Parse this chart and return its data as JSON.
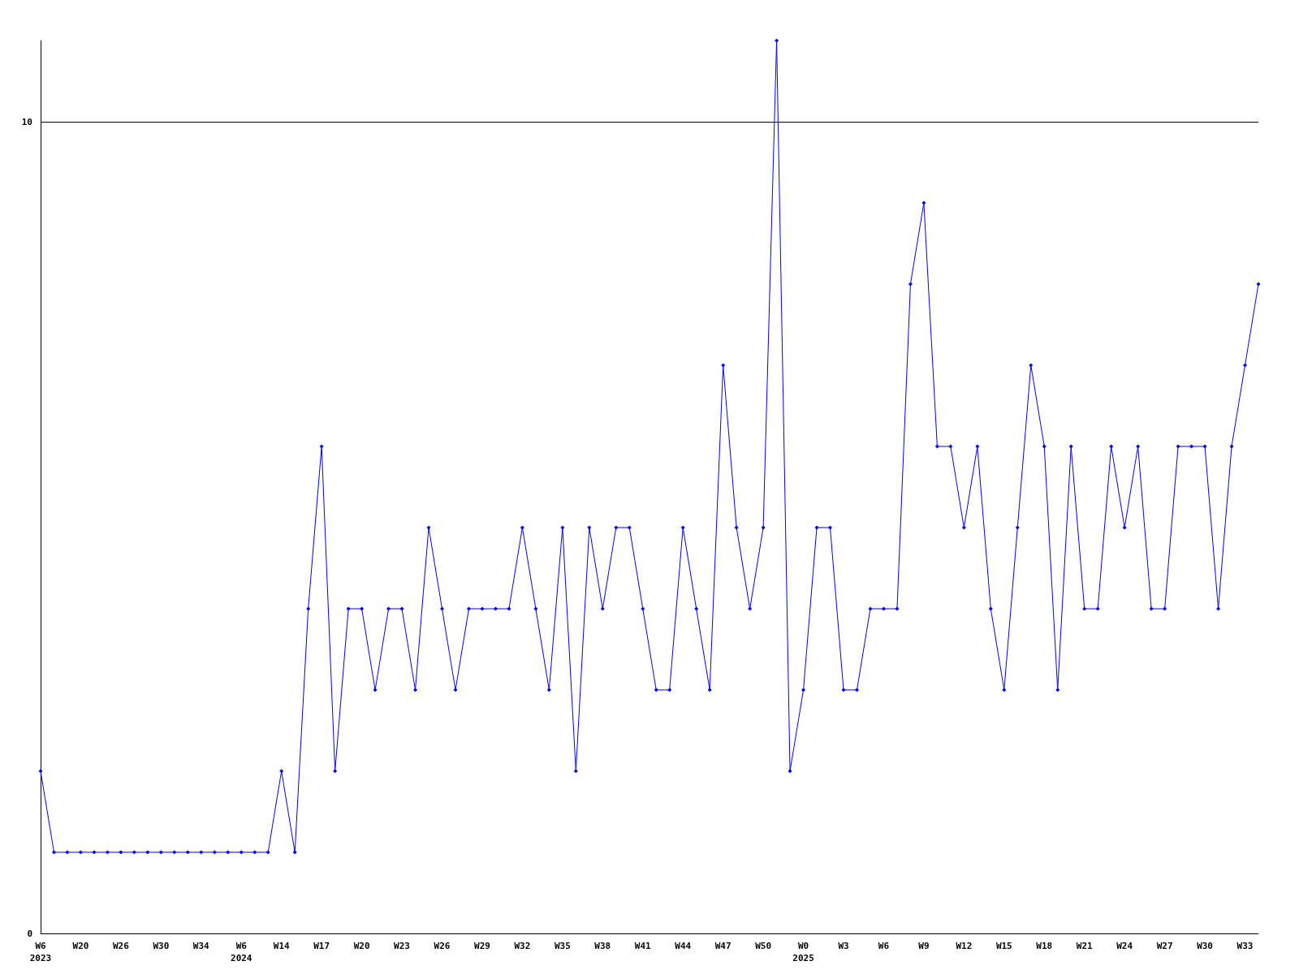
{
  "chart_data": {
    "type": "line",
    "categories": [
      "W6\n2023",
      null,
      null,
      "W20",
      null,
      null,
      "W26",
      null,
      null,
      "W30",
      null,
      null,
      "W34",
      null,
      null,
      "W6\n2024",
      null,
      null,
      "W14",
      null,
      null,
      "W17",
      null,
      null,
      "W20",
      null,
      null,
      "W23",
      null,
      null,
      "W26",
      null,
      null,
      "W29",
      null,
      null,
      "W32",
      null,
      null,
      "W35",
      null,
      null,
      "W38",
      null,
      null,
      "W41",
      null,
      null,
      "W44",
      null,
      null,
      "W47",
      null,
      null,
      "W50",
      null,
      null,
      "W0\n2025",
      null,
      null,
      "W3",
      null,
      null,
      "W6",
      null,
      null,
      "W9",
      null,
      null,
      "W12",
      null,
      null,
      "W15",
      null,
      null,
      "W18",
      null,
      null,
      "W21",
      null,
      null,
      "W24",
      null,
      null,
      "W27",
      null,
      null,
      "W30",
      null,
      null,
      "W33",
      null
    ],
    "series": [
      {
        "color": "#0000ff",
        "values": [
          2,
          1,
          1,
          1,
          1,
          1,
          1,
          1,
          1,
          1,
          1,
          1,
          1,
          1,
          1,
          1,
          1,
          1,
          2,
          1,
          4,
          6,
          2,
          4,
          4,
          3,
          4,
          4,
          3,
          5,
          4,
          3,
          4,
          4,
          4,
          4,
          5,
          4,
          3,
          5,
          2,
          5,
          4,
          5,
          5,
          4,
          3,
          3,
          5,
          4,
          3,
          7,
          5,
          4,
          5,
          11,
          2,
          3,
          5,
          5,
          3,
          3,
          4,
          4,
          4,
          8,
          9,
          6,
          6,
          5,
          6,
          4,
          3,
          5,
          7,
          6,
          3,
          6,
          4,
          4,
          6,
          5,
          6,
          4,
          4,
          6,
          6,
          6,
          4,
          6,
          7,
          8
        ]
      }
    ],
    "ylim": [
      0,
      11
    ],
    "yticks": [
      0,
      10
    ],
    "grid": "y",
    "marker": "diamond",
    "line_style": "solid"
  }
}
